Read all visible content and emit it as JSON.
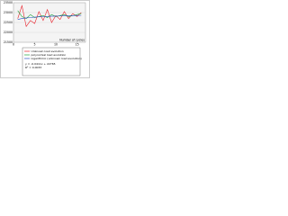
{
  "chart_data": {
    "type": "line",
    "x_label": "Number of cycles",
    "x": [
      1,
      2,
      3,
      4,
      5,
      6,
      7,
      8,
      9,
      10,
      11,
      12,
      13,
      14,
      15,
      16
    ],
    "series": [
      {
        "name": "Unknown load evolution",
        "color": "#e8202a",
        "values": [
          22700,
          23350,
          22300,
          22600,
          22450,
          23050,
          22600,
          23150,
          22500,
          22850,
          22650,
          23050,
          22700,
          22950,
          22800,
          23000
        ]
      },
      {
        "name": "polynomial load evolution",
        "color": "#1fa33a",
        "values": [
          23100,
          22800,
          22700,
          22900,
          22750,
          22800,
          22850,
          22750,
          22900,
          22800,
          22850,
          22900,
          22800,
          22850,
          22900,
          22950
        ]
      },
      {
        "name": "logarithmic (unknown load evolution)",
        "color": "#2c4fc4",
        "values": [
          22650,
          22700,
          22730,
          22750,
          22770,
          22785,
          22795,
          22805,
          22815,
          22822,
          22830,
          22836,
          22842,
          22848,
          22853,
          22858
        ]
      }
    ],
    "annotations": [
      "y = -0.0411x + 22765",
      "R² = 0.0033"
    ],
    "xlim": [
      0,
      17
    ],
    "xticks": [
      0,
      5,
      10,
      15
    ],
    "ylim": [
      21500,
      23500
    ],
    "yticks": [
      21500,
      22000,
      22500,
      23000,
      23500
    ],
    "grid": true
  }
}
